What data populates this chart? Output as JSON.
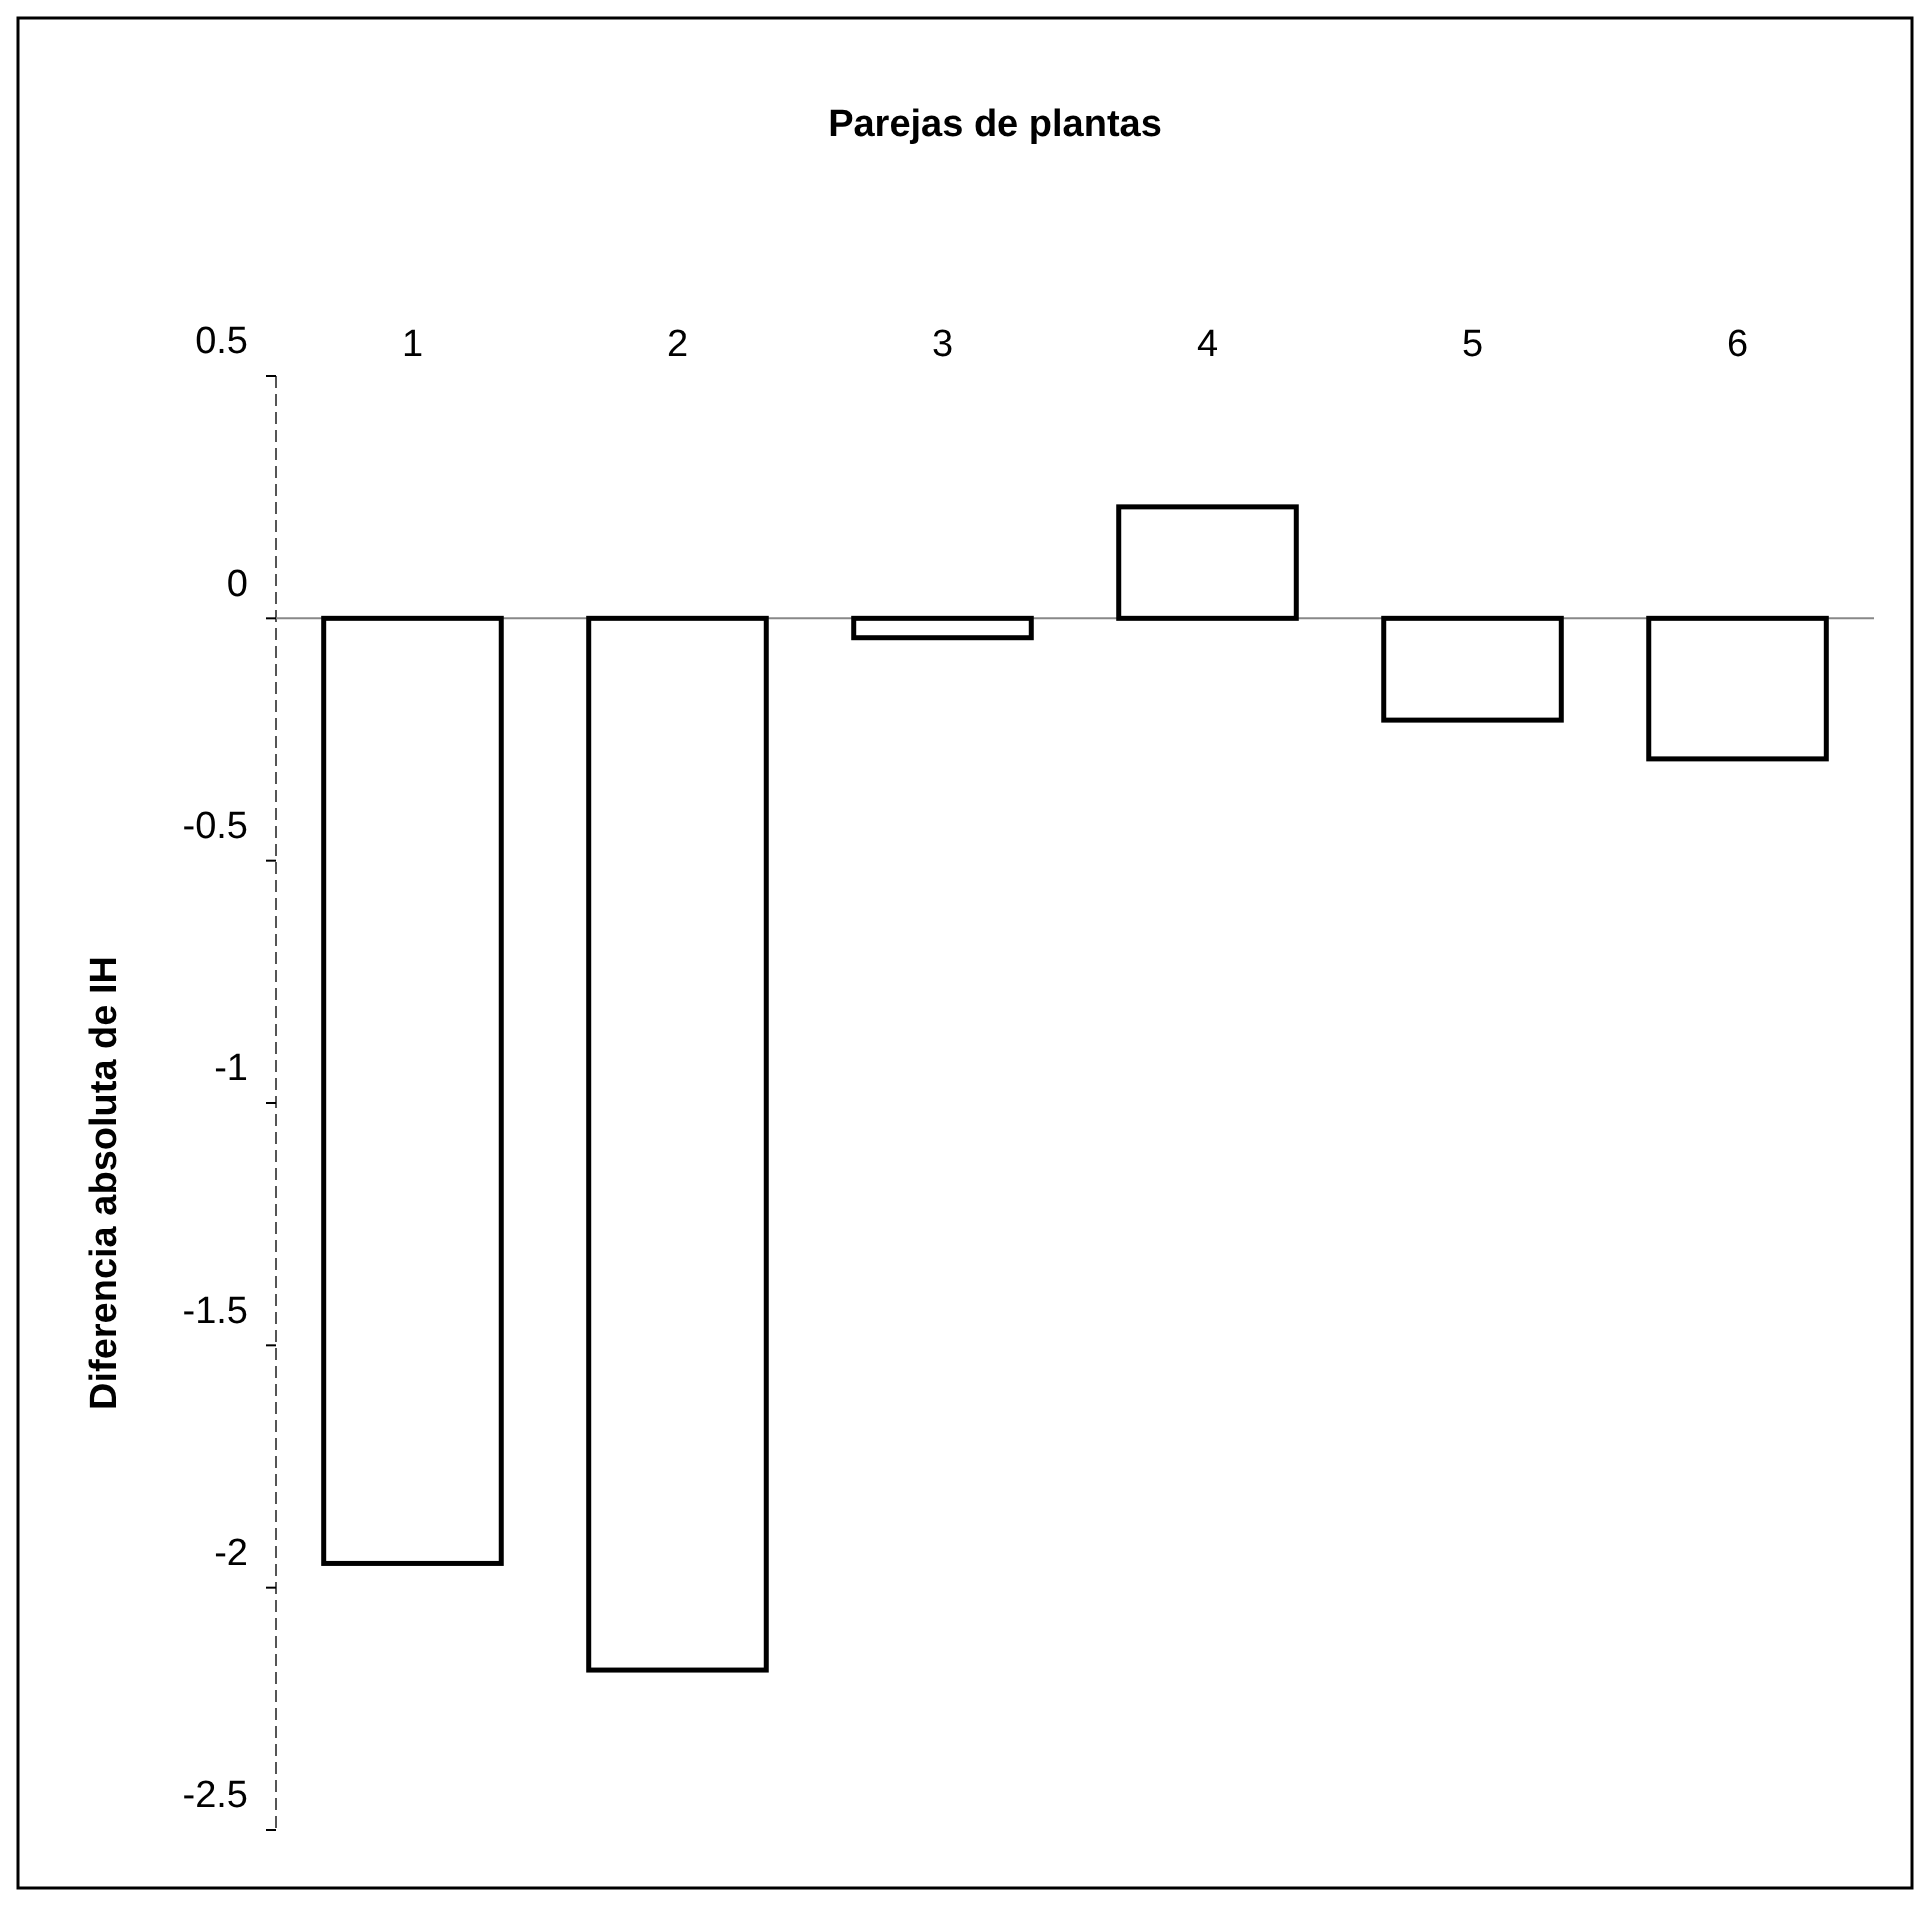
{
  "chart_data": {
    "type": "bar",
    "title": "Parejas de plantas",
    "ylabel": "Diferencia absoluta de IH",
    "categories": [
      "1",
      "2",
      "3",
      "4",
      "5",
      "6"
    ],
    "values": [
      -1.95,
      -2.17,
      -0.04,
      0.23,
      -0.21,
      -0.29
    ],
    "color": "#ffffff",
    "ylim": [
      -2.5,
      0.5
    ],
    "yticks": [
      {
        "value": -2.5,
        "label": "-2.5"
      },
      {
        "value": -2,
        "label": "-2"
      },
      {
        "value": -1.5,
        "label": "-1.5"
      },
      {
        "value": -1,
        "label": "-1"
      },
      {
        "value": -0.5,
        "label": "-0.5"
      },
      {
        "value": 0,
        "label": "0"
      },
      {
        "value": 0.5,
        "label": "0.5"
      }
    ]
  }
}
